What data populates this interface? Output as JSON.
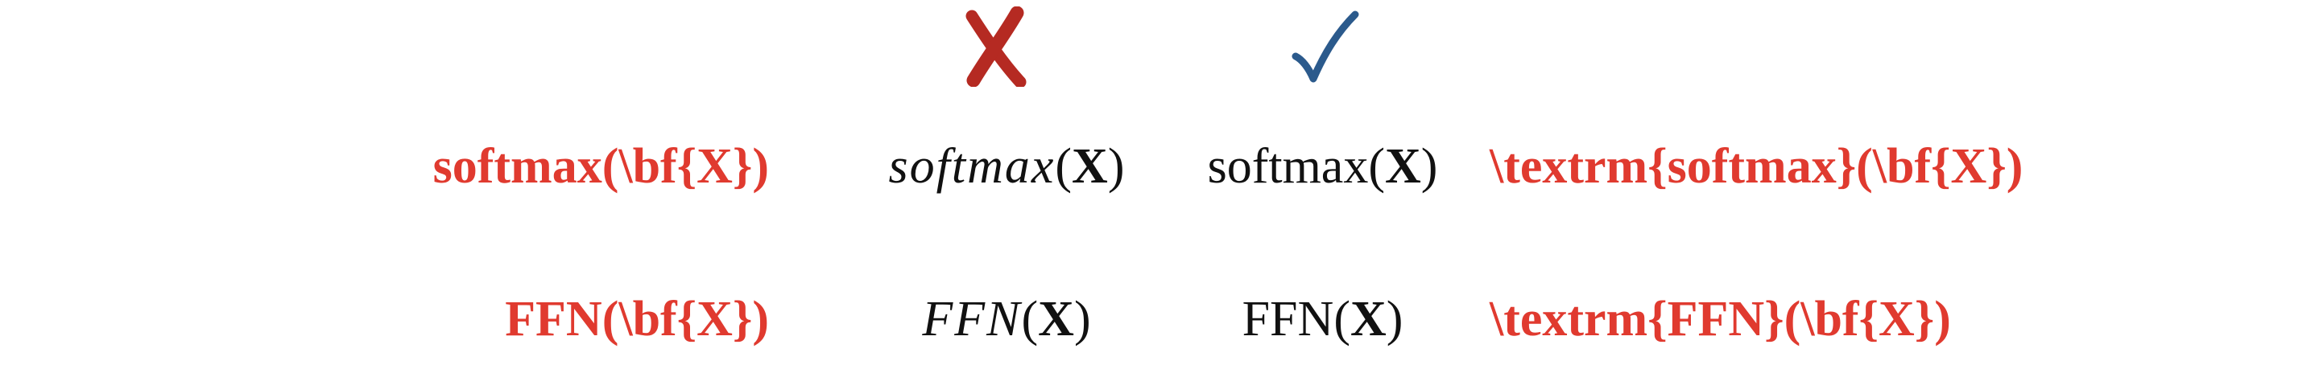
{
  "header": {
    "wrong_icon": "cross-icon",
    "right_icon": "check-icon",
    "wrong_color": "#b52a22",
    "right_color": "#2b5a8c"
  },
  "colors": {
    "code_text": "#e03a2f",
    "math_text": "#111111"
  },
  "rows": [
    {
      "code_wrong": "softmax(\\bf{X})",
      "rendered_wrong_name": "softmax",
      "rendered_right_name": "softmax",
      "arg_open": "(",
      "arg": "X",
      "arg_close": ")",
      "code_right": "\\textrm{softmax}(\\bf{X})"
    },
    {
      "code_wrong": "FFN(\\bf{X})",
      "rendered_wrong_name": "FFN",
      "rendered_right_name": "FFN",
      "arg_open": "(",
      "arg": "X",
      "arg_close": ")",
      "code_right": "\\textrm{FFN}(\\bf{X})"
    }
  ]
}
